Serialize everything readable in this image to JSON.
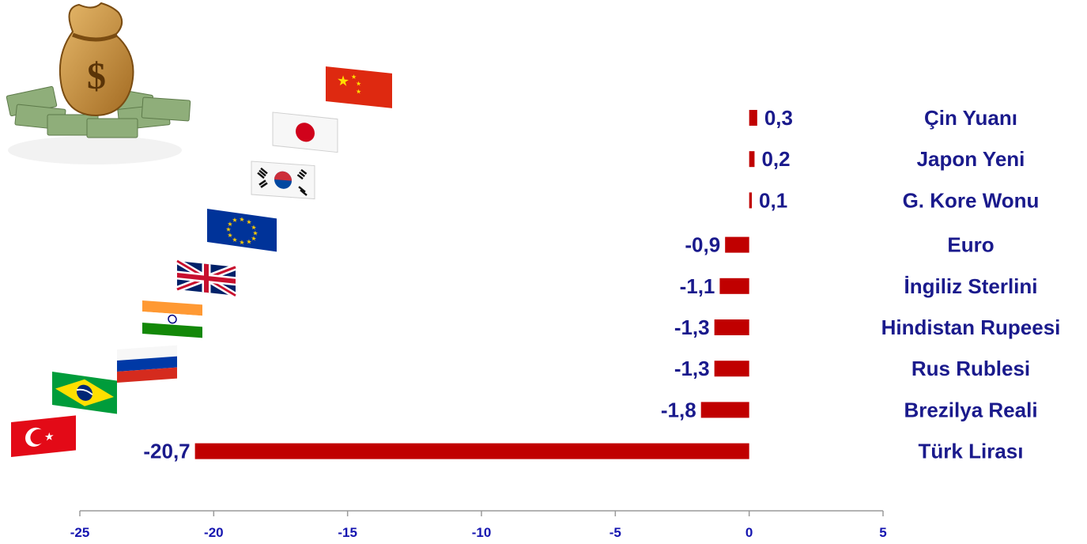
{
  "chart_data": {
    "type": "bar",
    "orientation": "horizontal",
    "categories": [
      "Çin Yuanı",
      "Japon Yeni",
      "G. Kore Wonu",
      "Euro",
      "İngiliz  Sterlini",
      "Hindistan  Rupeesi",
      "Rus Rublesi",
      "Brezilya  Reali",
      "Türk Lirası"
    ],
    "values": [
      0.3,
      0.2,
      0.1,
      -0.9,
      -1.1,
      -1.3,
      -1.3,
      -1.8,
      -20.7
    ],
    "value_labels": [
      "0,3",
      "0,2",
      "0,1",
      "-0,9",
      "-1,1",
      "-1,3",
      "-1,3",
      "-1,8",
      "-20,7"
    ],
    "xlim": [
      -25,
      5
    ],
    "xticks": [
      -25,
      -20,
      -15,
      -10,
      -5,
      0,
      5
    ],
    "xtick_labels": [
      "-25",
      "-20",
      "-15",
      "-10",
      "-5",
      "0",
      "5"
    ],
    "bar_color": "#c00000",
    "label_color": "#1a1a8c",
    "grid": false,
    "legend": "none",
    "flags": [
      "china-flag-icon",
      "japan-flag-icon",
      "south-korea-flag-icon",
      "eu-flag-icon",
      "uk-flag-icon",
      "india-flag-icon",
      "russia-flag-icon",
      "brazil-flag-icon",
      "turkey-flag-icon"
    ],
    "decoration": "money-bag-icon"
  }
}
